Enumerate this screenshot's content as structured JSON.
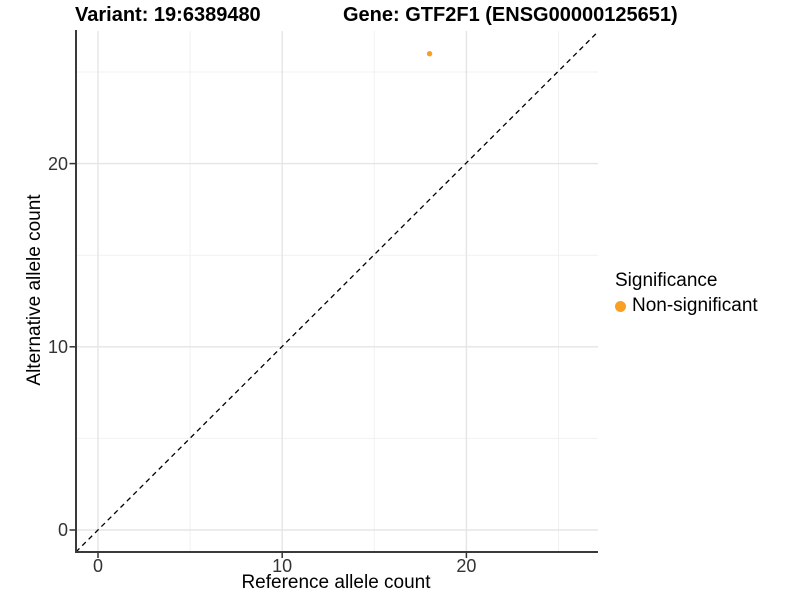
{
  "titles": {
    "variant": "Variant: 19:6389480",
    "gene": "Gene: GTF2F1 (ENSG00000125651)"
  },
  "axes": {
    "x_label": "Reference allele count",
    "y_label": "Alternative allele count",
    "x_tick_labels": [
      "0",
      "10",
      "20"
    ],
    "y_tick_labels": [
      "0",
      "10",
      "20"
    ]
  },
  "legend": {
    "title": "Significance",
    "items": [
      {
        "label": "Non-significant",
        "color": "#F9A022"
      }
    ]
  },
  "chart_data": {
    "type": "scatter",
    "title": "Variant: 19:6389480 — Gene: GTF2F1 (ENSG00000125651)",
    "xlabel": "Reference allele count",
    "ylabel": "Alternative allele count",
    "xlim": [
      -1.2,
      27.2
    ],
    "ylim": [
      -1.2,
      27.3
    ],
    "x_major_ticks": [
      0,
      10,
      20
    ],
    "y_major_ticks": [
      0,
      10,
      20
    ],
    "x_minor_ticks": [
      5,
      15,
      25
    ],
    "y_minor_ticks": [
      5,
      15,
      25
    ],
    "grid": true,
    "legend_position": "right",
    "identity_line": {
      "equation": "y = x",
      "style": "dashed",
      "color": "#000000"
    },
    "series": [
      {
        "name": "Non-significant",
        "color": "#F9A022",
        "points": [
          {
            "x": 18,
            "y": 26
          }
        ]
      }
    ],
    "colors": {
      "axis_line": "#3A3A3A",
      "tick_mark": "#333333",
      "grid_major": "#E5E5E5",
      "grid_minor": "#F1F1F1",
      "point": "#F9A022"
    }
  }
}
